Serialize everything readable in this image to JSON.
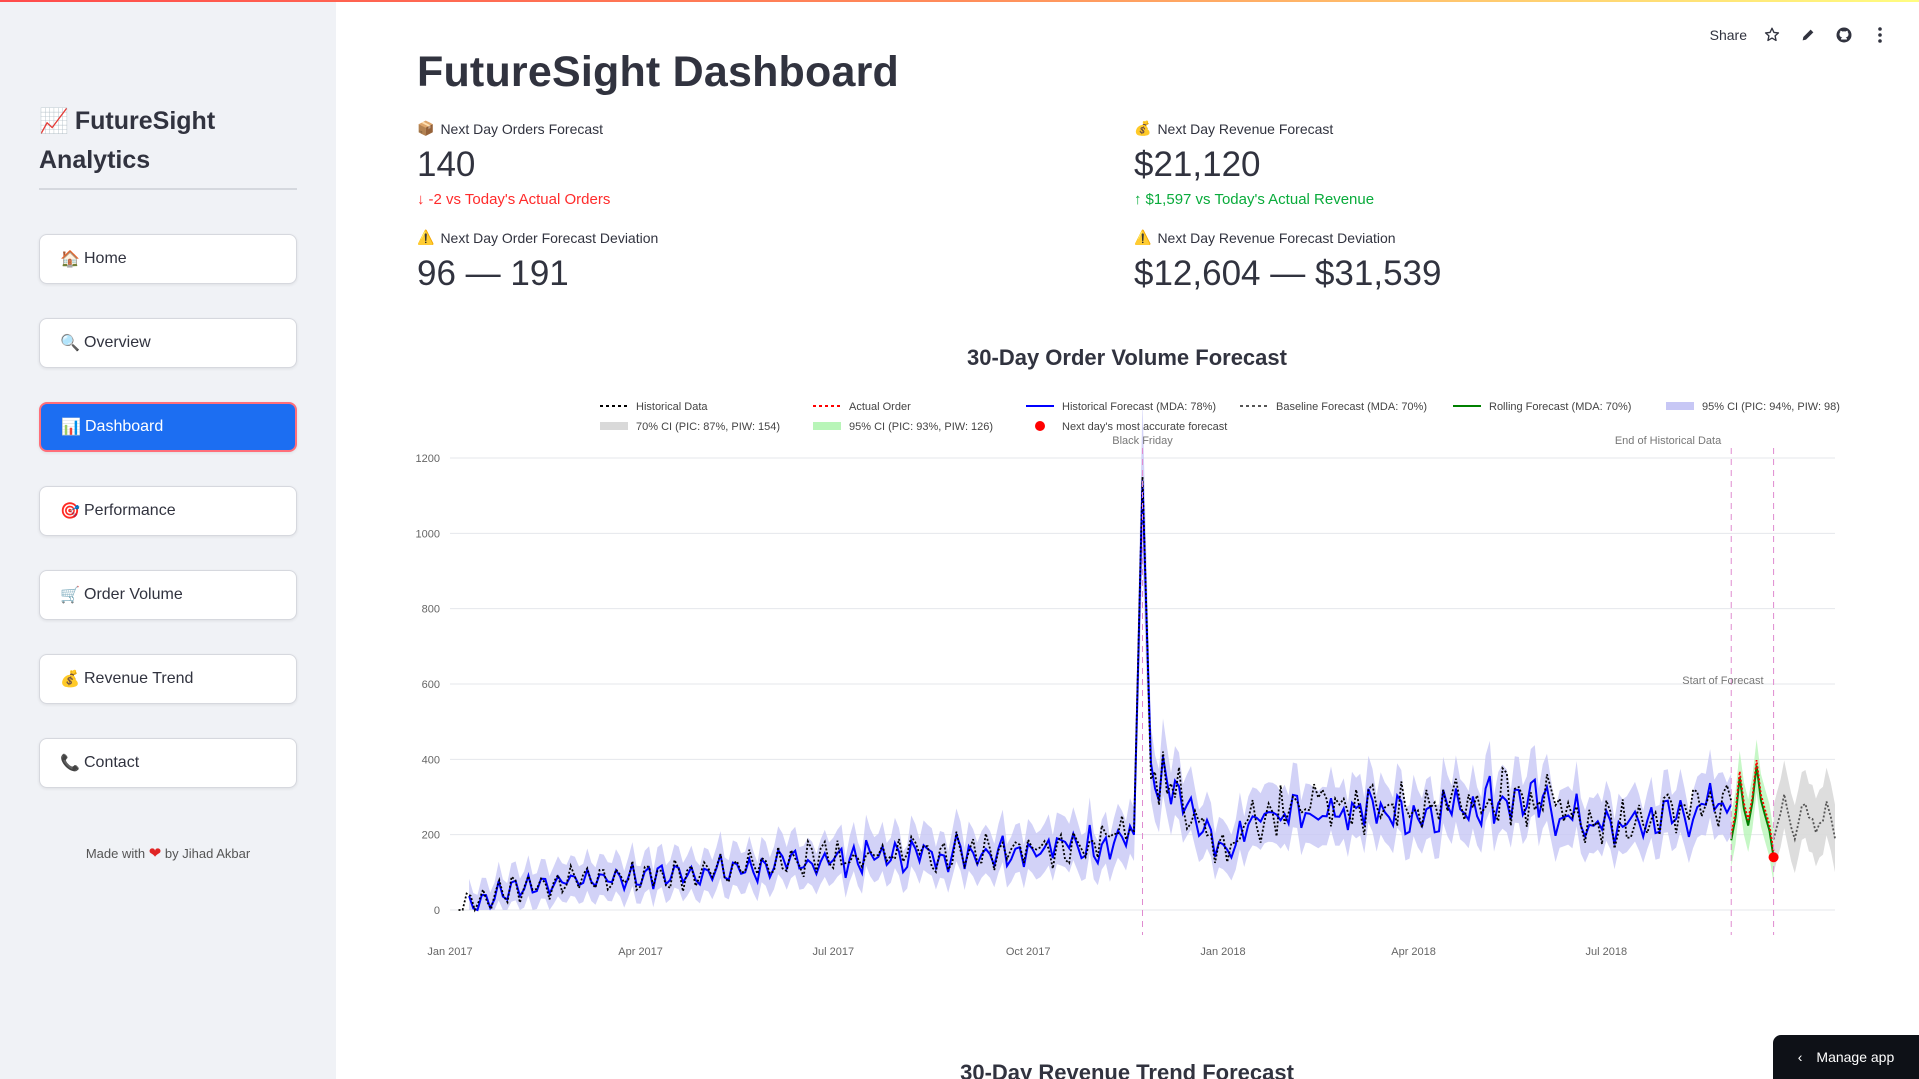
{
  "app": {
    "brand_emoji": "📈",
    "brand_title": "FutureSight Analytics",
    "footer_prefix": "Made with",
    "footer_suffix": "by Jihad Akbar"
  },
  "sidebar": {
    "items": [
      {
        "label": "Home",
        "icon": "🏠",
        "icon_name": "home-icon",
        "active": false
      },
      {
        "label": "Overview",
        "icon": "🔍",
        "icon_name": "magnifier-icon",
        "active": false
      },
      {
        "label": "Dashboard",
        "icon": "📊",
        "icon_name": "bar-chart-icon",
        "active": true
      },
      {
        "label": "Performance",
        "icon": "🎯",
        "icon_name": "target-icon",
        "active": false
      },
      {
        "label": "Order Volume",
        "icon": "🛒",
        "icon_name": "cart-icon",
        "active": false
      },
      {
        "label": "Revenue Trend",
        "icon": "💰",
        "icon_name": "money-bag-icon",
        "active": false
      },
      {
        "label": "Contact",
        "icon": "📞",
        "icon_name": "phone-icon",
        "active": false
      }
    ]
  },
  "toolbar": {
    "share_label": "Share"
  },
  "main": {
    "title": "FutureSight Dashboard",
    "metrics": [
      {
        "label": "Next Day Orders Forecast",
        "icon": "📦",
        "value": "140",
        "delta": "-2 vs Today's Actual Orders",
        "direction": "down"
      },
      {
        "label": "Next Day Revenue Forecast",
        "icon": "💰",
        "value": "$21,120",
        "delta": "$1,597 vs Today's Actual Revenue",
        "direction": "up"
      },
      {
        "label": "Next Day Order Forecast Deviation",
        "icon": "⚠️",
        "value": "96 — 191"
      },
      {
        "label": "Next Day Revenue Forecast Deviation",
        "icon": "⚠️",
        "value": "$12,604 — $31,539"
      }
    ],
    "chart_title": "30-Day Order Volume Forecast",
    "next_chart_title": "30-Day Revenue Trend Forecast"
  },
  "manage_app": {
    "label": "Manage app"
  },
  "colors": {
    "accent": "#1c6ef2",
    "historical_forecast": "#0000ff",
    "rolling_forecast": "#008000",
    "actual": "#ff0000",
    "ci95_blue": "#c7c7f5",
    "ci70_gray": "#d9d9d9",
    "ci95_green": "#b8f5b8"
  },
  "chart_data": {
    "type": "line",
    "title": "30-Day Order Volume Forecast",
    "xlabel": "",
    "ylabel": "",
    "x_ticks": [
      "Jan 2017",
      "Apr 2017",
      "Jul 2017",
      "Oct 2017",
      "Jan 2018",
      "Apr 2018",
      "Jul 2018"
    ],
    "y_ticks": [
      0,
      200,
      400,
      600,
      800,
      1000,
      1200
    ],
    "ylim": [
      0,
      1200
    ],
    "xlim": [
      "2017-01-01",
      "2018-10-17"
    ],
    "grid": true,
    "legend_position": "top",
    "legend": [
      {
        "name": "Historical Data",
        "style": "dotted",
        "color": "#000000"
      },
      {
        "name": "Actual Order",
        "style": "dotted",
        "color": "#ff0000"
      },
      {
        "name": "Historical Forecast (MDA: 78%)",
        "style": "solid",
        "color": "#0000ff"
      },
      {
        "name": "Baseline Forecast (MDA: 70%)",
        "style": "dotted",
        "color": "#555555"
      },
      {
        "name": "Rolling Forecast (MDA: 70%)",
        "style": "solid",
        "color": "#008000"
      },
      {
        "name": "95% CI (PIC: 94%, PIW: 98)",
        "style": "band",
        "color": "#c7c7f5"
      },
      {
        "name": "70% CI (PIC: 87%, PIW: 154)",
        "style": "band",
        "color": "#d9d9d9"
      },
      {
        "name": "95% CI (PIC: 93%, PIW: 126)",
        "style": "band",
        "color": "#b8f5b8"
      },
      {
        "name": "Next day's most accurate forecast",
        "style": "marker",
        "color": "#ff0000"
      }
    ],
    "annotations": [
      {
        "text": "Black Friday",
        "x": "2017-11-24"
      },
      {
        "text": "End of Historical Data",
        "x": "2018-08-29"
      },
      {
        "text": "Start of Forecast",
        "x": "2018-09-18"
      }
    ],
    "series": [
      {
        "name": "Historical Data",
        "x": [
          "2017-01-05",
          "2017-02-01",
          "2017-03-01",
          "2017-04-01",
          "2017-05-01",
          "2017-06-01",
          "2017-07-01",
          "2017-08-01",
          "2017-09-01",
          "2017-10-01",
          "2017-11-01",
          "2017-11-20",
          "2017-11-24",
          "2017-11-28",
          "2017-12-15",
          "2018-01-01",
          "2018-01-15",
          "2018-02-01",
          "2018-03-01",
          "2018-04-01",
          "2018-05-01",
          "2018-05-15",
          "2018-06-01",
          "2018-07-01",
          "2018-08-01",
          "2018-08-29"
        ],
        "values": [
          5,
          60,
          80,
          90,
          100,
          120,
          140,
          150,
          160,
          170,
          180,
          210,
          1150,
          380,
          270,
          150,
          240,
          270,
          280,
          260,
          300,
          320,
          280,
          220,
          260,
          290
        ]
      },
      {
        "name": "Historical Forecast (MDA: 78%)",
        "x": [
          "2017-01-10",
          "2017-02-01",
          "2017-03-01",
          "2017-04-01",
          "2017-05-01",
          "2017-06-01",
          "2017-07-01",
          "2017-08-01",
          "2017-09-01",
          "2017-10-01",
          "2017-11-01",
          "2017-11-20",
          "2017-11-24",
          "2017-11-28",
          "2017-12-15",
          "2018-01-01",
          "2018-01-15",
          "2018-02-01",
          "2018-03-01",
          "2018-04-01",
          "2018-05-01",
          "2018-05-15",
          "2018-06-01",
          "2018-07-01",
          "2018-08-01",
          "2018-08-29"
        ],
        "values": [
          10,
          60,
          80,
          90,
          100,
          115,
          135,
          145,
          155,
          165,
          175,
          200,
          1140,
          370,
          260,
          140,
          230,
          260,
          270,
          255,
          290,
          300,
          275,
          215,
          250,
          280
        ]
      },
      {
        "name": "Rolling Forecast (MDA: 70%)",
        "x": [
          "2018-08-29",
          "2018-09-02",
          "2018-09-06",
          "2018-09-10",
          "2018-09-14",
          "2018-09-18"
        ],
        "values": [
          200,
          320,
          230,
          350,
          260,
          140
        ]
      },
      {
        "name": "Baseline Forecast (MDA: 70%)",
        "x": [
          "2018-09-18",
          "2018-09-23",
          "2018-09-28",
          "2018-10-03",
          "2018-10-08",
          "2018-10-13",
          "2018-10-17"
        ],
        "values": [
          190,
          290,
          200,
          290,
          200,
          280,
          190
        ]
      }
    ],
    "next_day_forecast": {
      "x": "2018-09-18",
      "y": 140
    }
  }
}
